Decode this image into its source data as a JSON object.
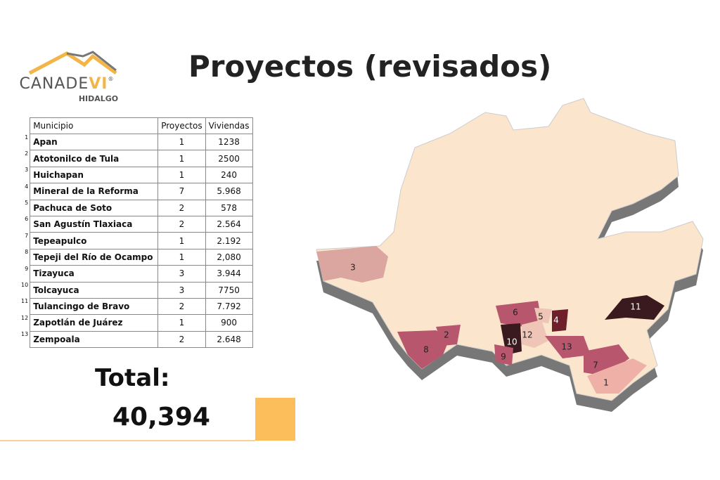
{
  "header": {
    "title": "Proyectos (revisados)"
  },
  "logo": {
    "brand": "CANADE",
    "brand_accent": "VI",
    "registered": "®",
    "region": "HIDALGO"
  },
  "table": {
    "columns": [
      "Municipio",
      "Proyectos",
      "Viviendas"
    ],
    "rows": [
      [
        "1",
        "Apan",
        "1",
        "1238"
      ],
      [
        "2",
        "Atotonilco de Tula",
        "1",
        "2500"
      ],
      [
        "3",
        "Huichapan",
        "1",
        "240"
      ],
      [
        "4",
        "Mineral de la Reforma",
        "7",
        "5.968"
      ],
      [
        "5",
        "Pachuca de Soto",
        "2",
        "578"
      ],
      [
        "6",
        "San Agustín Tlaxiaca",
        "2",
        "2.564"
      ],
      [
        "7",
        "Tepeapulco",
        "1",
        "2.192"
      ],
      [
        "8",
        "Tepeji del Río de Ocampo",
        "1",
        "2,080"
      ],
      [
        "9",
        "Tizayuca",
        "3",
        "3.944"
      ],
      [
        "10",
        "Tolcayuca",
        "3",
        "7750"
      ],
      [
        "11",
        "Tulancingo de Bravo",
        "2",
        "7.792"
      ],
      [
        "12",
        "Zapotlán de Juárez",
        "1",
        "900"
      ],
      [
        "13",
        "Zempoala",
        "2",
        "2.648"
      ]
    ]
  },
  "total": {
    "label": "Total:",
    "value": "40,394"
  },
  "map": {
    "labels": [
      "1",
      "2",
      "3",
      "4",
      "5",
      "6",
      "7",
      "8",
      "9",
      "10",
      "11",
      "12",
      "13"
    ]
  }
}
